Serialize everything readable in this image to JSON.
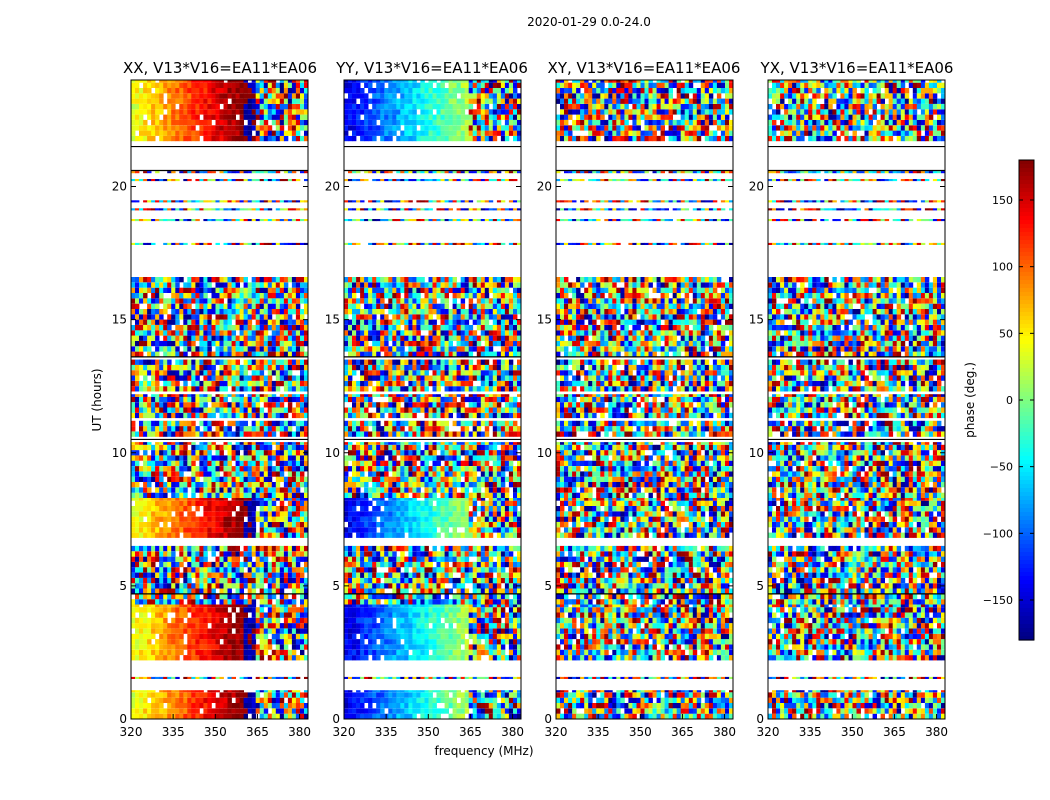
{
  "figure_title": "2020-01-29 0.0-24.0",
  "chart_data": {
    "type": "heatmap",
    "xlabel": "frequency (MHz)",
    "ylabel": "UT (hours)",
    "xlim": [
      320,
      383
    ],
    "ylim": [
      0,
      24
    ],
    "xticks": [
      "320",
      "335",
      "350",
      "365",
      "380"
    ],
    "yticks": [
      "0",
      "5",
      "10",
      "15",
      "20"
    ],
    "panels": [
      {
        "title": "XX, V13*V16=EA11*EA06",
        "pattern": "smooth-phase",
        "hue_shift": 0
      },
      {
        "title": "YY, V13*V16=EA11*EA06",
        "pattern": "smooth-phase",
        "hue_shift": 0.5
      },
      {
        "title": "XY, V13*V16=EA11*EA06",
        "pattern": "noise"
      },
      {
        "title": "YX, V13*V16=EA11*EA06",
        "pattern": "noise"
      }
    ],
    "data_bands_ut": [
      [
        0.0,
        1.08
      ],
      [
        2.2,
        4.3
      ],
      [
        4.3,
        5.1
      ],
      [
        5.1,
        6.5
      ],
      [
        6.8,
        8.3
      ],
      [
        8.3,
        10.4
      ],
      [
        10.6,
        11.2
      ],
      [
        11.3,
        12.2
      ],
      [
        12.3,
        13.5
      ],
      [
        13.6,
        14.8
      ],
      [
        14.8,
        16.0
      ],
      [
        16.0,
        16.6
      ],
      [
        21.7,
        24.0
      ]
    ],
    "data_lines_ut": [
      1.5,
      17.8,
      18.7,
      19.1,
      19.4,
      20.2,
      20.5
    ],
    "coherent_band_ut": [
      [
        0.0,
        1.08
      ],
      [
        2.2,
        4.3
      ],
      [
        6.8,
        8.3
      ],
      [
        21.7,
        24.0
      ]
    ],
    "coherent_freq_mhz": [
      320,
      364
    ],
    "colorbar": {
      "label": "phase (deg.)",
      "min": -180,
      "max": 180,
      "ticks": [
        "−150",
        "−100",
        "−50",
        "0",
        "50",
        "100",
        "150"
      ],
      "tick_values": [
        -150,
        -100,
        -50,
        0,
        50,
        100,
        150
      ],
      "colormap": "jet"
    }
  }
}
